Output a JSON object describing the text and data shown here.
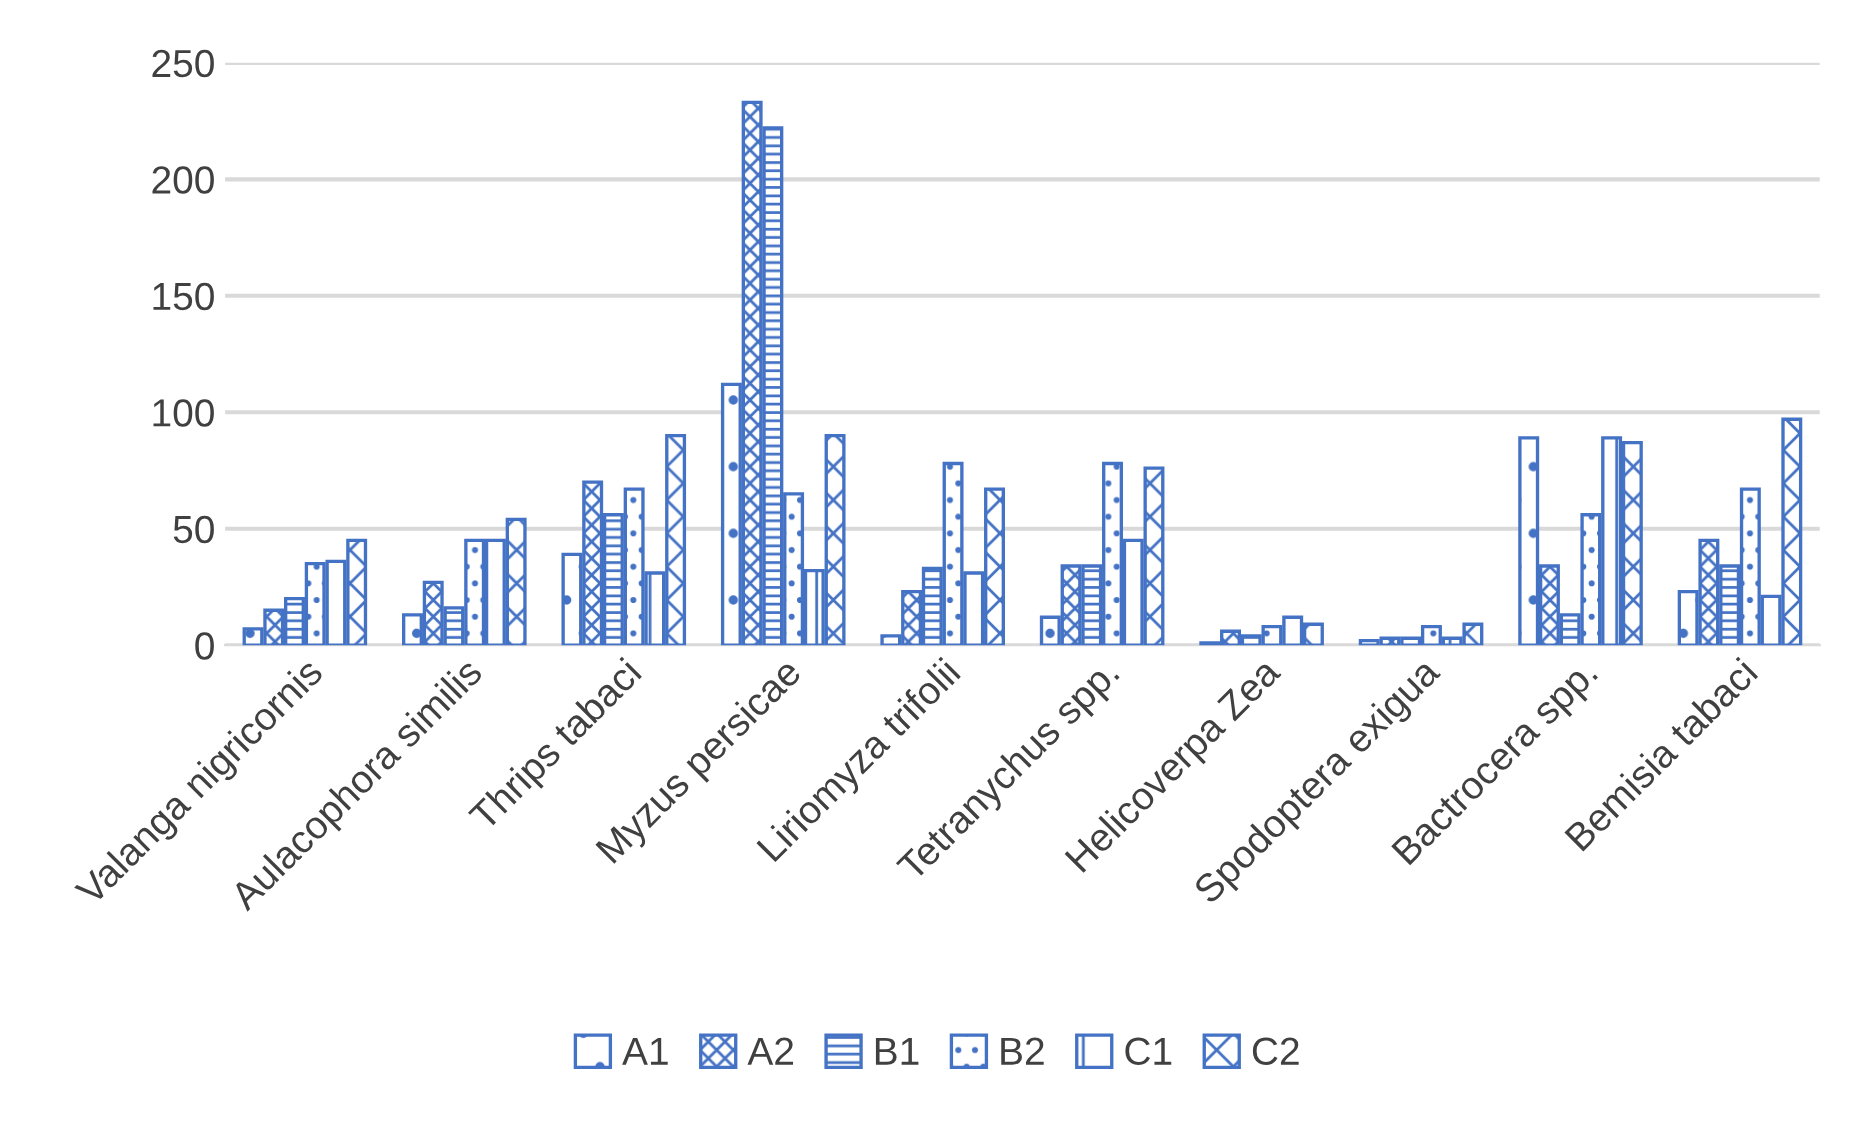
{
  "chart_data": {
    "type": "bar",
    "categories": [
      "Valanga nigricornis",
      "Aulacophora similis",
      "Thrips tabaci",
      "Myzus persicae",
      "Liriomyza trifolii",
      "Tetranychus spp.",
      "Helicoverpa Zea",
      "Spodoptera exigua",
      "Bactrocera spp.",
      "Bemisia tabaci"
    ],
    "series": [
      {
        "name": "A1",
        "color": "#4472c4",
        "values": [
          7,
          13,
          39,
          112,
          4,
          12,
          1,
          2,
          89,
          23
        ]
      },
      {
        "name": "A2",
        "color": "#4472c4",
        "values": [
          15,
          27,
          70,
          233,
          23,
          34,
          6,
          3,
          34,
          45
        ]
      },
      {
        "name": "B1",
        "color": "#4472c4",
        "values": [
          20,
          16,
          56,
          222,
          33,
          34,
          4,
          3,
          13,
          34
        ]
      },
      {
        "name": "B2",
        "color": "#4472c4",
        "values": [
          35,
          45,
          67,
          65,
          78,
          78,
          8,
          8,
          56,
          67
        ]
      },
      {
        "name": "C1",
        "color": "#4472c4",
        "values": [
          36,
          45,
          31,
          32,
          31,
          45,
          12,
          3,
          89,
          21
        ]
      },
      {
        "name": "C2",
        "color": "#4472c4",
        "values": [
          45,
          54,
          90,
          90,
          67,
          76,
          9,
          9,
          87,
          97
        ]
      }
    ],
    "ylim": [
      0,
      250
    ],
    "yticks": [
      0,
      50,
      100,
      150,
      200,
      250
    ],
    "grid": "y",
    "legend": "bottom"
  }
}
